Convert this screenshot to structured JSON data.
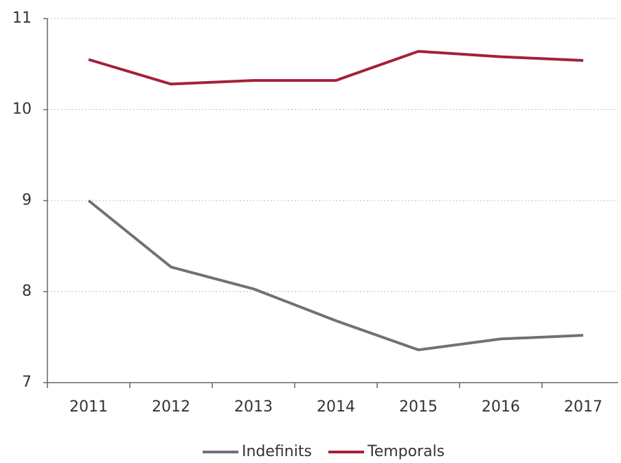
{
  "chart_data": {
    "type": "line",
    "categories": [
      "2011",
      "2012",
      "2013",
      "2014",
      "2015",
      "2016",
      "2017"
    ],
    "series": [
      {
        "name": "Indefinits",
        "color": "#6d7279",
        "values": [
          9.0,
          8.27,
          8.03,
          7.68,
          7.36,
          7.48,
          7.52
        ]
      },
      {
        "name": "Temporals",
        "color": "#a3203a",
        "values": [
          10.55,
          10.28,
          10.32,
          10.32,
          10.64,
          10.58,
          10.54
        ]
      }
    ],
    "ylim": [
      7,
      11
    ],
    "yticks": [
      7,
      8,
      9,
      10,
      11
    ],
    "grid": true,
    "legend": "bottom"
  }
}
